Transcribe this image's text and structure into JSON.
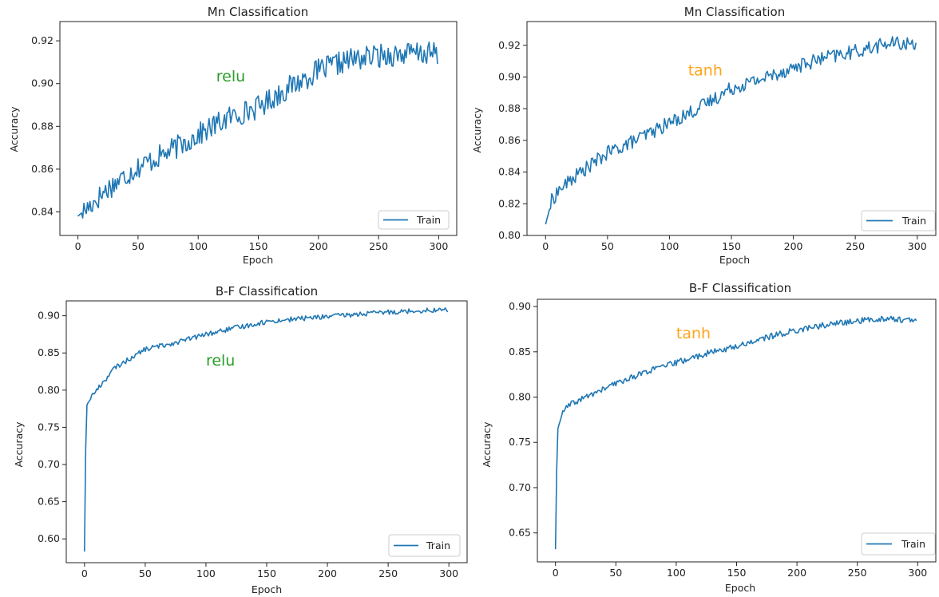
{
  "charts": [
    {
      "title": "Mn Classification",
      "xlabel": "Epoch",
      "ylabel": "Accuracy",
      "annotation": "relu",
      "annotation_color": "#2a9d2a",
      "legend": "Train"
    },
    {
      "title": "Mn Classification",
      "xlabel": "Epoch",
      "ylabel": "Accuracy",
      "annotation": "tanh",
      "annotation_color": "#ffa41b",
      "legend": "Train"
    },
    {
      "title": "B-F Classification",
      "xlabel": "Epoch",
      "ylabel": "Accuracy",
      "annotation": "relu",
      "annotation_color": "#2a9d2a",
      "legend": "Train"
    },
    {
      "title": "B-F Classification",
      "xlabel": "Epoch",
      "ylabel": "Accuracy",
      "annotation": "tanh",
      "annotation_color": "#ffa41b",
      "legend": "Train"
    }
  ],
  "chart_data": [
    {
      "type": "line",
      "title": "Mn Classification",
      "xlabel": "Epoch",
      "ylabel": "Accuracy",
      "xlim": [
        -15,
        315
      ],
      "ylim": [
        0.829,
        0.929
      ],
      "xticks": [
        0,
        50,
        100,
        150,
        200,
        250,
        300
      ],
      "yticks": [
        0.84,
        0.86,
        0.88,
        0.9,
        0.92
      ],
      "ytick_labels": [
        "0.84",
        "0.86",
        "0.88",
        "0.90",
        "0.92"
      ],
      "annotation": {
        "text": "relu",
        "x": 115,
        "y": 0.901
      },
      "legend_position": "lower right",
      "color": "#1f77b4",
      "series": [
        {
          "name": "Train",
          "x": [
            0,
            10,
            25,
            50,
            75,
            100,
            125,
            150,
            175,
            200,
            225,
            250,
            275,
            299
          ],
          "values": [
            0.838,
            0.843,
            0.851,
            0.861,
            0.868,
            0.876,
            0.884,
            0.889,
            0.898,
            0.906,
            0.911,
            0.913,
            0.914,
            0.914
          ]
        }
      ]
    },
    {
      "type": "line",
      "title": "Mn Classification",
      "xlabel": "Epoch",
      "ylabel": "Accuracy",
      "xlim": [
        -15,
        315
      ],
      "ylim": [
        0.8,
        0.935
      ],
      "xticks": [
        0,
        50,
        100,
        150,
        200,
        250,
        300
      ],
      "yticks": [
        0.8,
        0.82,
        0.84,
        0.86,
        0.88,
        0.9,
        0.92
      ],
      "ytick_labels": [
        "0.80",
        "0.82",
        "0.84",
        "0.86",
        "0.88",
        "0.90",
        "0.92"
      ],
      "annotation": {
        "text": "tanh",
        "x": 115,
        "y": 0.901
      },
      "legend_position": "lower right",
      "color": "#1f77b4",
      "series": [
        {
          "name": "Train",
          "x": [
            0,
            5,
            10,
            25,
            50,
            75,
            100,
            125,
            150,
            175,
            200,
            225,
            250,
            275,
            299
          ],
          "values": [
            0.807,
            0.822,
            0.828,
            0.838,
            0.852,
            0.861,
            0.871,
            0.881,
            0.893,
            0.899,
            0.906,
            0.912,
            0.916,
            0.921,
            0.921
          ]
        }
      ]
    },
    {
      "type": "line",
      "title": "B-F Classification",
      "xlabel": "Epoch",
      "ylabel": "Accuracy",
      "xlim": [
        -15,
        315
      ],
      "ylim": [
        0.568,
        0.92
      ],
      "xticks": [
        0,
        50,
        100,
        150,
        200,
        250,
        300
      ],
      "yticks": [
        0.6,
        0.65,
        0.7,
        0.75,
        0.8,
        0.85,
        0.9
      ],
      "ytick_labels": [
        "0.60",
        "0.65",
        "0.70",
        "0.75",
        "0.80",
        "0.85",
        "0.90"
      ],
      "annotation": {
        "text": "relu",
        "x": 100,
        "y": 0.833
      },
      "legend_position": "lower right",
      "color": "#1f77b4",
      "series": [
        {
          "name": "Train",
          "x": [
            0,
            1,
            2,
            5,
            10,
            25,
            50,
            75,
            100,
            125,
            150,
            175,
            200,
            225,
            250,
            275,
            299
          ],
          "values": [
            0.583,
            0.72,
            0.78,
            0.79,
            0.8,
            0.83,
            0.855,
            0.864,
            0.875,
            0.884,
            0.892,
            0.896,
            0.899,
            0.902,
            0.905,
            0.907,
            0.908
          ]
        }
      ]
    },
    {
      "type": "line",
      "title": "B-F Classification",
      "xlabel": "Epoch",
      "ylabel": "Accuracy",
      "xlim": [
        -15,
        315
      ],
      "ylim": [
        0.618,
        0.908
      ],
      "xticks": [
        0,
        50,
        100,
        150,
        200,
        250,
        300
      ],
      "yticks": [
        0.65,
        0.7,
        0.75,
        0.8,
        0.85,
        0.9
      ],
      "ytick_labels": [
        "0.65",
        "0.70",
        "0.75",
        "0.80",
        "0.85",
        "0.90"
      ],
      "annotation": {
        "text": "tanh",
        "x": 100,
        "y": 0.865
      },
      "legend_position": "lower right",
      "color": "#1f77b4",
      "series": [
        {
          "name": "Train",
          "x": [
            0,
            1,
            2,
            5,
            10,
            25,
            50,
            75,
            100,
            125,
            150,
            175,
            200,
            225,
            250,
            275,
            299
          ],
          "values": [
            0.632,
            0.72,
            0.765,
            0.78,
            0.79,
            0.8,
            0.815,
            0.828,
            0.838,
            0.848,
            0.856,
            0.866,
            0.874,
            0.88,
            0.884,
            0.887,
            0.884
          ]
        }
      ]
    }
  ]
}
